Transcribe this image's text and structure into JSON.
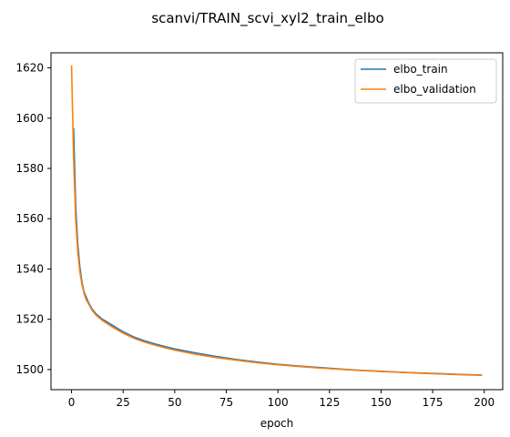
{
  "chart_data": {
    "type": "line",
    "title": "scanvi/TRAIN_scvi_xyl2_train_elbo",
    "xlabel": "epoch",
    "ylabel": "",
    "xlim": [
      -9.95,
      208.95
    ],
    "ylim": [
      1492,
      1626
    ],
    "xticks": [
      0,
      25,
      50,
      75,
      100,
      125,
      150,
      175,
      200
    ],
    "yticks": [
      1500,
      1520,
      1540,
      1560,
      1580,
      1600,
      1620
    ],
    "legend_position": "top-right",
    "grid": false,
    "series": [
      {
        "name": "elbo_train",
        "color": "#1f77b4",
        "x": [
          1,
          2,
          3,
          4,
          5,
          6,
          7,
          8,
          10,
          12,
          15,
          20,
          25,
          30,
          35,
          40,
          45,
          50,
          60,
          70,
          80,
          90,
          100,
          110,
          120,
          130,
          140,
          150,
          160,
          170,
          180,
          190,
          199
        ],
        "y": [
          1596,
          1565,
          1550,
          1541,
          1535,
          1531,
          1529,
          1527,
          1524,
          1522,
          1520,
          1517.5,
          1515,
          1513,
          1511.5,
          1510.3,
          1509.2,
          1508.2,
          1506.6,
          1505.2,
          1504,
          1503,
          1502.1,
          1501.4,
          1500.8,
          1500.2,
          1499.7,
          1499.3,
          1498.9,
          1498.6,
          1498.3,
          1498,
          1497.8
        ]
      },
      {
        "name": "elbo_validation",
        "color": "#ff7f0e",
        "x": [
          0,
          1,
          2,
          3,
          4,
          5,
          6,
          7,
          8,
          10,
          12,
          15,
          20,
          25,
          30,
          35,
          40,
          45,
          50,
          60,
          70,
          80,
          90,
          100,
          110,
          120,
          130,
          140,
          150,
          160,
          170,
          180,
          190,
          199
        ],
        "y": [
          1621,
          1584,
          1560,
          1547,
          1539,
          1534,
          1530.5,
          1528,
          1526.5,
          1523.5,
          1521.5,
          1519.5,
          1516.8,
          1514.5,
          1512.5,
          1511,
          1509.8,
          1508.7,
          1507.7,
          1506.1,
          1504.8,
          1503.7,
          1502.7,
          1501.9,
          1501.2,
          1500.6,
          1500.1,
          1499.6,
          1499.2,
          1498.9,
          1498.5,
          1498.2,
          1497.9,
          1497.7
        ]
      }
    ]
  }
}
